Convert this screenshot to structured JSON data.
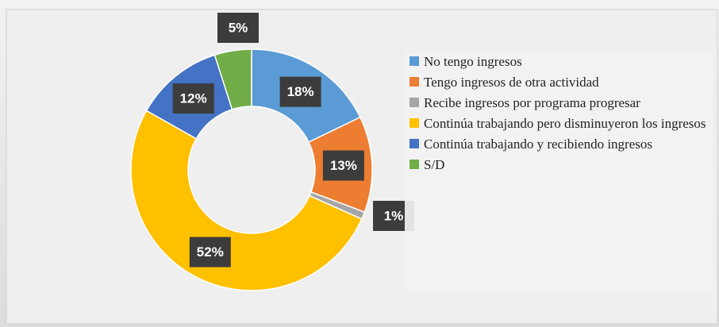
{
  "chart_data": {
    "type": "pie",
    "categories": [
      "No tengo ingresos",
      "Tengo ingresos de otra actividad",
      "Recibe ingresos por programa progresar",
      "Continúa trabajando pero disminuyeron los ingresos",
      "Continúa trabajando y recibiendo ingresos",
      "S/D"
    ],
    "values": [
      18,
      13,
      1,
      52,
      12,
      5
    ],
    "value_labels": [
      "18%",
      "13%",
      "1%",
      "52%",
      "12%",
      "5%"
    ],
    "colors": [
      "#5b9bd5",
      "#ed7d31",
      "#a5a5a5",
      "#ffc000",
      "#4472c4",
      "#70ad47"
    ],
    "legend": "right"
  }
}
